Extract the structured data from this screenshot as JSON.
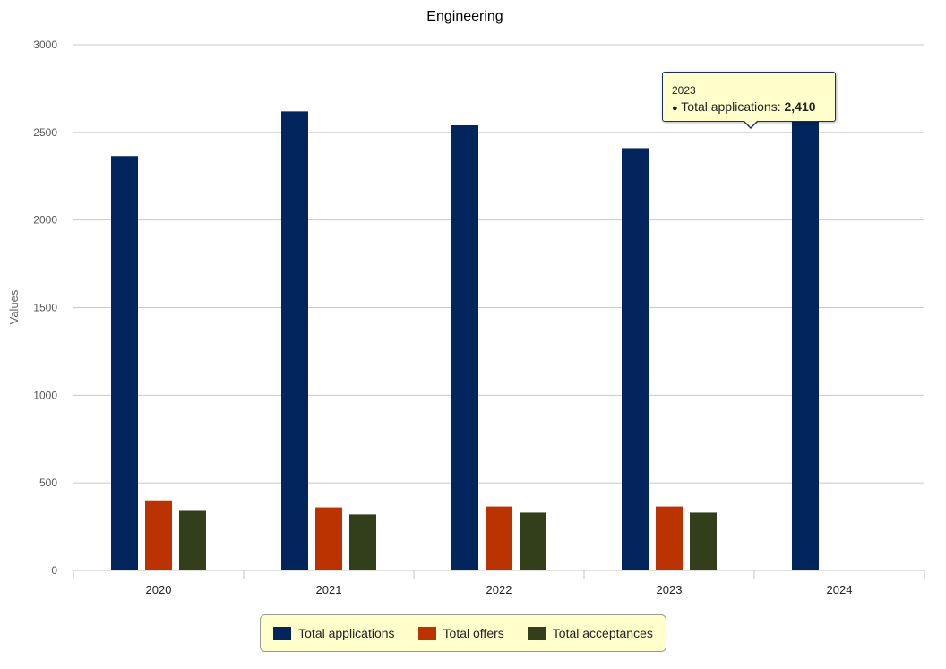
{
  "chart_data": {
    "type": "bar",
    "title": "Engineering",
    "xlabel": "",
    "ylabel": "Values",
    "categories": [
      "2020",
      "2021",
      "2022",
      "2023",
      "2024"
    ],
    "series": [
      {
        "name": "Total applications",
        "color": "#03255d",
        "values": [
          2365,
          2620,
          2540,
          2410,
          2600
        ]
      },
      {
        "name": "Total offers",
        "color": "#bb3300",
        "values": [
          400,
          360,
          365,
          365,
          null
        ]
      },
      {
        "name": "Total acceptances",
        "color": "#333f1a",
        "values": [
          340,
          320,
          330,
          330,
          null
        ]
      }
    ],
    "ylim": [
      0,
      3000
    ],
    "yticks": [
      "0",
      "500",
      "1000",
      "1500",
      "2000",
      "2500",
      "3000"
    ],
    "grid": true,
    "legend_position": "bottom-center"
  },
  "tooltip": {
    "category": "2023",
    "series_label": "Total applications:",
    "value": "2,410"
  }
}
